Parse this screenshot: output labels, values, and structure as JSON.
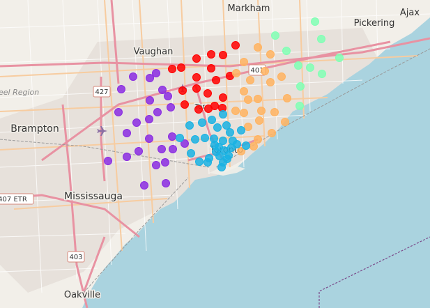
{
  "map": {
    "colors": {
      "water": "#aad3df",
      "land": "#f2efe9",
      "urban": "#e3dbd4",
      "highway": "#e892a2",
      "arterial": "#f7cca0",
      "minor": "#ffffff",
      "rail": "#999999",
      "boundary": "#7b4a8a"
    },
    "places": {
      "markham": "Markham",
      "ajax": "Ajax",
      "pickering": "Pickering",
      "vaughan": "Vaughan",
      "brampton": "Brampton",
      "mississauga": "Mississauga",
      "oakville": "Oakville",
      "toronto_core": "Toronto",
      "toronto_north": "Tor"
    },
    "regions": {
      "peel": "eel Region"
    },
    "shields": {
      "s401": "401",
      "s427": "427",
      "s403": "403",
      "s407": "407 ETR"
    },
    "icons": {
      "airport_main": "airport-icon",
      "airport_small": "airport-icon"
    },
    "clusters": [
      {
        "name": "purple",
        "color": "#8a2be2"
      },
      {
        "name": "red",
        "color": "#ff0000"
      },
      {
        "name": "orange",
        "color": "#ffb360"
      },
      {
        "name": "green",
        "color": "#80ffb4"
      },
      {
        "name": "blue",
        "color": "#1ab2e3"
      }
    ]
  }
}
